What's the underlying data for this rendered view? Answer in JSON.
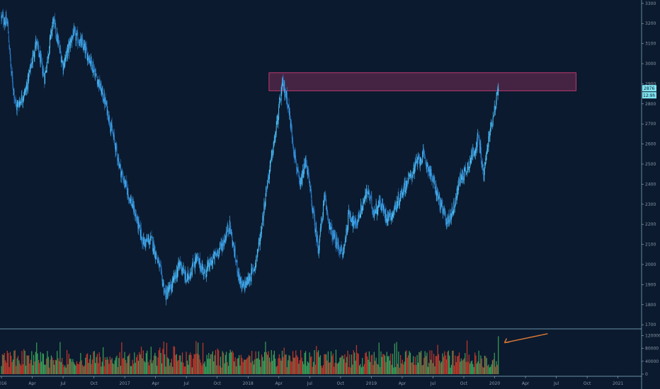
{
  "chart_data": {
    "type": "candlestick",
    "price_panel": {
      "ylim": [
        1690,
        3310
      ],
      "y_ticks": [
        1700,
        1800,
        1900,
        2000,
        2100,
        2200,
        2300,
        2400,
        2500,
        2600,
        2700,
        2800,
        2900,
        3000,
        3100,
        3200,
        3300
      ],
      "y_tick_labels": [
        "1700",
        "1800",
        "1900",
        "2000",
        "2100",
        "2200",
        "2300",
        "2400",
        "2500",
        "2600",
        "2700",
        "2800",
        "2900",
        "3000",
        "3100",
        "3200",
        "3300"
      ],
      "last_price_label": "2876",
      "countdown_label": "12:9h",
      "resistance_zone": {
        "from": 2865,
        "to": 2955,
        "x_start": 2018.17,
        "x_end": 2020.66,
        "color": "#e0407a"
      },
      "close_path": [
        [
          2016.0,
          3230
        ],
        [
          2016.05,
          3200
        ],
        [
          2016.08,
          2950
        ],
        [
          2016.12,
          2780
        ],
        [
          2016.2,
          2870
        ],
        [
          2016.28,
          3110
        ],
        [
          2016.35,
          2930
        ],
        [
          2016.42,
          3220
        ],
        [
          2016.5,
          2990
        ],
        [
          2016.58,
          3150
        ],
        [
          2016.65,
          3100
        ],
        [
          2016.72,
          3020
        ],
        [
          2016.78,
          2920
        ],
        [
          2016.85,
          2790
        ],
        [
          2016.92,
          2600
        ],
        [
          2016.97,
          2460
        ],
        [
          2017.02,
          2370
        ],
        [
          2017.08,
          2260
        ],
        [
          2017.15,
          2110
        ],
        [
          2017.22,
          2120
        ],
        [
          2017.28,
          1990
        ],
        [
          2017.33,
          1850
        ],
        [
          2017.38,
          1890
        ],
        [
          2017.45,
          2010
        ],
        [
          2017.5,
          1920
        ],
        [
          2017.58,
          2030
        ],
        [
          2017.65,
          1960
        ],
        [
          2017.72,
          2030
        ],
        [
          2017.8,
          2110
        ],
        [
          2017.85,
          2200
        ],
        [
          2017.9,
          2020
        ],
        [
          2017.95,
          1880
        ],
        [
          2018.0,
          1920
        ],
        [
          2018.05,
          1980
        ],
        [
          2018.1,
          2140
        ],
        [
          2018.15,
          2380
        ],
        [
          2018.22,
          2640
        ],
        [
          2018.28,
          2900
        ],
        [
          2018.32,
          2820
        ],
        [
          2018.37,
          2580
        ],
        [
          2018.42,
          2380
        ],
        [
          2018.47,
          2520
        ],
        [
          2018.52,
          2290
        ],
        [
          2018.57,
          2080
        ],
        [
          2018.62,
          2330
        ],
        [
          2018.67,
          2170
        ],
        [
          2018.72,
          2100
        ],
        [
          2018.77,
          2050
        ],
        [
          2018.82,
          2260
        ],
        [
          2018.87,
          2190
        ],
        [
          2018.92,
          2280
        ],
        [
          2018.97,
          2370
        ],
        [
          2019.02,
          2260
        ],
        [
          2019.07,
          2310
        ],
        [
          2019.12,
          2240
        ],
        [
          2019.17,
          2250
        ],
        [
          2019.22,
          2320
        ],
        [
          2019.27,
          2390
        ],
        [
          2019.32,
          2440
        ],
        [
          2019.37,
          2510
        ],
        [
          2019.42,
          2540
        ],
        [
          2019.47,
          2470
        ],
        [
          2019.52,
          2380
        ],
        [
          2019.57,
          2280
        ],
        [
          2019.62,
          2210
        ],
        [
          2019.67,
          2290
        ],
        [
          2019.72,
          2430
        ],
        [
          2019.77,
          2470
        ],
        [
          2019.82,
          2550
        ],
        [
          2019.87,
          2630
        ],
        [
          2019.91,
          2440
        ],
        [
          2019.95,
          2620
        ],
        [
          2019.99,
          2750
        ],
        [
          2020.03,
          2876
        ]
      ],
      "color_up": "#4fc3f7",
      "color_down": "#2979c9"
    },
    "volume_panel": {
      "ylim": [
        0,
        130000
      ],
      "y_ticks": [
        0,
        40000,
        80000,
        120000
      ],
      "y_tick_labels": [
        "0",
        "40000",
        "80000",
        "120000"
      ],
      "color_up": "#3aa05a",
      "color_down": "#c0392b",
      "arrow_color": "#e07a36"
    },
    "x_axis": {
      "xlim": [
        2016.0,
        2021.18
      ],
      "tick_labels": [
        {
          "t": 2016.0,
          "label": "2016"
        },
        {
          "t": 2016.25,
          "label": "Apr"
        },
        {
          "t": 2016.5,
          "label": "Jul"
        },
        {
          "t": 2016.75,
          "label": "Oct"
        },
        {
          "t": 2017.0,
          "label": "2017"
        },
        {
          "t": 2017.25,
          "label": "Apr"
        },
        {
          "t": 2017.5,
          "label": "Jul"
        },
        {
          "t": 2017.75,
          "label": "Oct"
        },
        {
          "t": 2018.0,
          "label": "2018"
        },
        {
          "t": 2018.25,
          "label": "Apr"
        },
        {
          "t": 2018.5,
          "label": "Jul"
        },
        {
          "t": 2018.75,
          "label": "Oct"
        },
        {
          "t": 2019.0,
          "label": "2019"
        },
        {
          "t": 2019.25,
          "label": "Apr"
        },
        {
          "t": 2019.5,
          "label": "Jul"
        },
        {
          "t": 2019.75,
          "label": "Oct"
        },
        {
          "t": 2020.0,
          "label": "2020"
        },
        {
          "t": 2020.25,
          "label": "Apr"
        },
        {
          "t": 2020.5,
          "label": "Jul"
        },
        {
          "t": 2020.75,
          "label": "Oct"
        },
        {
          "t": 2021.0,
          "label": "2021"
        }
      ]
    },
    "grid": false,
    "colors": {
      "background": "#0b1a2e",
      "axis_line": "#8fb9cf",
      "tick_text": "#8a97a8",
      "price_tag": "#7fe3f0"
    }
  }
}
